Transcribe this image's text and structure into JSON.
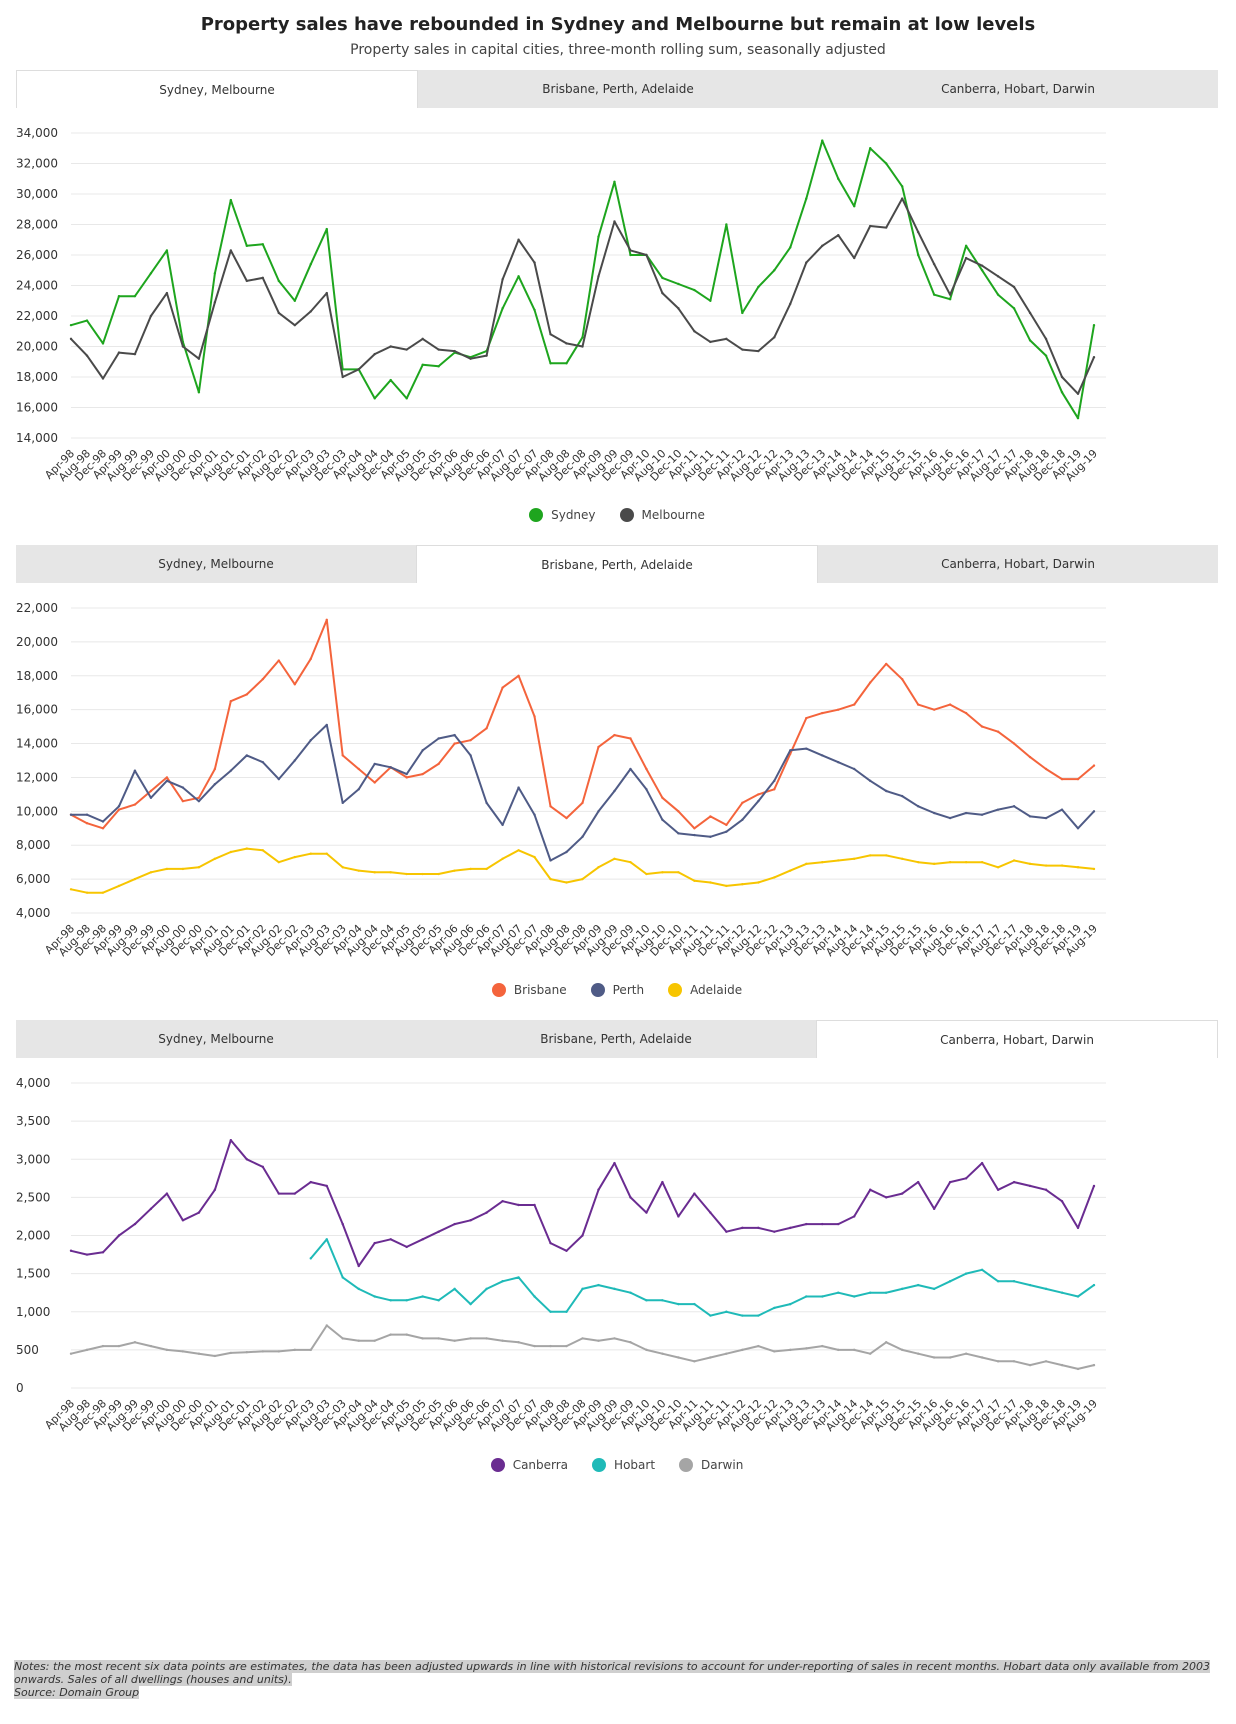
{
  "header": {
    "title": "Property sales have rebounded in Sydney and Melbourne but remain at low levels",
    "subtitle": "Property sales in capital cities, three-month rolling sum, seasonally adjusted"
  },
  "tabs": [
    "Sydney, Melbourne",
    "Brisbane, Perth, Adelaide",
    "Canberra, Hobart, Darwin"
  ],
  "colors": {
    "sydney": "#1ea51e",
    "melbourne": "#4a4a4a",
    "brisbane": "#f4643c",
    "perth": "#4f5b86",
    "adelaide": "#f7c500",
    "canberra": "#6a2c91",
    "hobart": "#1fbab8",
    "darwin": "#a5a5a5"
  },
  "notes": {
    "text": "Notes: the most recent six data points are estimates, the data has been adjusted upwards in line with historical revisions to account for under-reporting of sales in recent months. Hobart data only available from 2003 onwards. Sales of all dwellings (houses and units).",
    "source": "Source: Domain Group"
  },
  "chart_data": [
    {
      "type": "line",
      "active_tab": 0,
      "x_ticks": [
        "Apr-98",
        "Aug-98",
        "Dec-98",
        "Apr-99",
        "Aug-99",
        "Dec-99",
        "Apr-00",
        "Aug-00",
        "Dec-00",
        "Apr-01",
        "Aug-01",
        "Dec-01",
        "Apr-02",
        "Aug-02",
        "Dec-02",
        "Apr-03",
        "Aug-03",
        "Dec-03",
        "Apr-04",
        "Aug-04",
        "Dec-04",
        "Apr-05",
        "Aug-05",
        "Dec-05",
        "Apr-06",
        "Aug-06",
        "Dec-06",
        "Apr-07",
        "Aug-07",
        "Dec-07",
        "Apr-08",
        "Aug-08",
        "Dec-08",
        "Apr-09",
        "Aug-09",
        "Dec-09",
        "Apr-10",
        "Aug-10",
        "Dec-10",
        "Apr-11",
        "Aug-11",
        "Dec-11",
        "Apr-12",
        "Aug-12",
        "Dec-12",
        "Apr-13",
        "Aug-13",
        "Dec-13",
        "Apr-14",
        "Aug-14",
        "Dec-14",
        "Apr-15",
        "Aug-15",
        "Dec-15",
        "Apr-16",
        "Aug-16",
        "Dec-16",
        "Apr-17",
        "Aug-17",
        "Dec-17",
        "Apr-18",
        "Aug-18",
        "Dec-18",
        "Apr-19",
        "Aug-19"
      ],
      "y_ticks": [
        "34,000",
        "32,000",
        "30,000",
        "28,000",
        "26,000",
        "24,000",
        "22,000",
        "20,000",
        "18,000",
        "16,000",
        "14,000"
      ],
      "ylim": [
        14000,
        34000
      ],
      "series": [
        {
          "name": "Sydney",
          "color_key": "sydney",
          "values": [
            21400,
            21700,
            20200,
            23300,
            23300,
            24800,
            26300,
            20300,
            17000,
            24800,
            29600,
            26600,
            26700,
            24300,
            23000,
            25400,
            27700,
            18500,
            18500,
            16600,
            17800,
            16600,
            18800,
            18700,
            19600,
            19300,
            19700,
            22500,
            24600,
            22400,
            18900,
            18900,
            20600,
            27200,
            30800,
            26000,
            26000,
            24500,
            24100,
            23700,
            23000,
            28000,
            22200,
            23900,
            25000,
            26500,
            29700,
            33500,
            31000,
            29200,
            33000,
            32000,
            30500,
            26000,
            23400,
            23100,
            26600,
            25000,
            23400,
            22500,
            20400,
            19400,
            17000,
            15300,
            21400
          ]
        },
        {
          "name": "Melbourne",
          "color_key": "melbourne",
          "values": [
            20500,
            19400,
            17900,
            19600,
            19500,
            22000,
            23500,
            20000,
            19200,
            22900,
            26300,
            24300,
            24500,
            22200,
            21400,
            22300,
            23500,
            18000,
            18500,
            19500,
            20000,
            19800,
            20500,
            19800,
            19700,
            19200,
            19400,
            24400,
            27000,
            25500,
            20800,
            20200,
            20000,
            24600,
            28200,
            26300,
            26000,
            23500,
            22500,
            21000,
            20300,
            20500,
            19800,
            19700,
            20600,
            22800,
            25500,
            26600,
            27300,
            25800,
            27900,
            27800,
            29700,
            27500,
            25400,
            23400,
            25800,
            25300,
            24600,
            23900,
            22200,
            20500,
            18000,
            16900,
            19300
          ]
        }
      ]
    },
    {
      "type": "line",
      "active_tab": 1,
      "x_ticks": [
        "Apr-98",
        "Aug-98",
        "Dec-98",
        "Apr-99",
        "Aug-99",
        "Dec-99",
        "Apr-00",
        "Aug-00",
        "Dec-00",
        "Apr-01",
        "Aug-01",
        "Dec-01",
        "Apr-02",
        "Aug-02",
        "Dec-02",
        "Apr-03",
        "Aug-03",
        "Dec-03",
        "Apr-04",
        "Aug-04",
        "Dec-04",
        "Apr-05",
        "Aug-05",
        "Dec-05",
        "Apr-06",
        "Aug-06",
        "Dec-06",
        "Apr-07",
        "Aug-07",
        "Dec-07",
        "Apr-08",
        "Aug-08",
        "Dec-08",
        "Apr-09",
        "Aug-09",
        "Dec-09",
        "Apr-10",
        "Aug-10",
        "Dec-10",
        "Apr-11",
        "Aug-11",
        "Dec-11",
        "Apr-12",
        "Aug-12",
        "Dec-12",
        "Apr-13",
        "Aug-13",
        "Dec-13",
        "Apr-14",
        "Aug-14",
        "Dec-14",
        "Apr-15",
        "Aug-15",
        "Dec-15",
        "Apr-16",
        "Aug-16",
        "Dec-16",
        "Apr-17",
        "Aug-17",
        "Dec-17",
        "Apr-18",
        "Aug-18",
        "Dec-18",
        "Apr-19",
        "Aug-19"
      ],
      "y_ticks": [
        "22,000",
        "20,000",
        "18,000",
        "16,000",
        "14,000",
        "12,000",
        "10,000",
        "8,000",
        "6,000",
        "4,000"
      ],
      "ylim": [
        4000,
        22000
      ],
      "series": [
        {
          "name": "Brisbane",
          "color_key": "brisbane",
          "values": [
            9800,
            9300,
            9000,
            10100,
            10400,
            11200,
            12000,
            10600,
            10800,
            12500,
            16500,
            16900,
            17800,
            18900,
            17500,
            19000,
            21300,
            13300,
            12500,
            11700,
            12600,
            12000,
            12200,
            12800,
            14000,
            14200,
            14900,
            17300,
            18000,
            15600,
            10300,
            9600,
            10500,
            13800,
            14500,
            14300,
            12500,
            10800,
            10000,
            9000,
            9700,
            9200,
            10500,
            11000,
            11300,
            13400,
            15500,
            15800,
            16000,
            16300,
            17600,
            18700,
            17800,
            16300,
            16000,
            16300,
            15800,
            15000,
            14700,
            14000,
            13200,
            12500,
            11900,
            11900,
            12700
          ]
        },
        {
          "name": "Perth",
          "color_key": "perth",
          "values": [
            9800,
            9800,
            9400,
            10300,
            12400,
            10800,
            11800,
            11400,
            10600,
            11600,
            12400,
            13300,
            12900,
            11900,
            13000,
            14200,
            15100,
            10500,
            11300,
            12800,
            12600,
            12200,
            13600,
            14300,
            14500,
            13300,
            10500,
            9200,
            11400,
            9800,
            7100,
            7600,
            8500,
            10000,
            11200,
            12500,
            11300,
            9500,
            8700,
            8600,
            8500,
            8800,
            9500,
            10600,
            11800,
            13600,
            13700,
            13300,
            12900,
            12500,
            11800,
            11200,
            10900,
            10300,
            9900,
            9600,
            9900,
            9800,
            10100,
            10300,
            9700,
            9600,
            10100,
            9000,
            10000
          ]
        },
        {
          "name": "Adelaide",
          "color_key": "adelaide",
          "values": [
            5400,
            5200,
            5200,
            5600,
            6000,
            6400,
            6600,
            6600,
            6700,
            7200,
            7600,
            7800,
            7700,
            7000,
            7300,
            7500,
            7500,
            6700,
            6500,
            6400,
            6400,
            6300,
            6300,
            6300,
            6500,
            6600,
            6600,
            7200,
            7700,
            7300,
            6000,
            5800,
            6000,
            6700,
            7200,
            7000,
            6300,
            6400,
            6400,
            5900,
            5800,
            5600,
            5700,
            5800,
            6100,
            6500,
            6900,
            7000,
            7100,
            7200,
            7400,
            7400,
            7200,
            7000,
            6900,
            7000,
            7000,
            7000,
            6700,
            7100,
            6900,
            6800,
            6800,
            6700,
            6600
          ]
        }
      ]
    },
    {
      "type": "line",
      "active_tab": 2,
      "x_ticks": [
        "Apr-98",
        "Aug-98",
        "Dec-98",
        "Apr-99",
        "Aug-99",
        "Dec-99",
        "Apr-00",
        "Aug-00",
        "Dec-00",
        "Apr-01",
        "Aug-01",
        "Dec-01",
        "Apr-02",
        "Aug-02",
        "Dec-02",
        "Apr-03",
        "Aug-03",
        "Dec-03",
        "Apr-04",
        "Aug-04",
        "Dec-04",
        "Apr-05",
        "Aug-05",
        "Dec-05",
        "Apr-06",
        "Aug-06",
        "Dec-06",
        "Apr-07",
        "Aug-07",
        "Dec-07",
        "Apr-08",
        "Aug-08",
        "Dec-08",
        "Apr-09",
        "Aug-09",
        "Dec-09",
        "Apr-10",
        "Aug-10",
        "Dec-10",
        "Apr-11",
        "Aug-11",
        "Dec-11",
        "Apr-12",
        "Aug-12",
        "Dec-12",
        "Apr-13",
        "Aug-13",
        "Dec-13",
        "Apr-14",
        "Aug-14",
        "Dec-14",
        "Apr-15",
        "Aug-15",
        "Dec-15",
        "Apr-16",
        "Aug-16",
        "Dec-16",
        "Apr-17",
        "Aug-17",
        "Dec-17",
        "Apr-18",
        "Aug-18",
        "Dec-18",
        "Apr-19",
        "Aug-19"
      ],
      "y_ticks": [
        "4,000",
        "3,500",
        "3,000",
        "2,500",
        "2,000",
        "1,500",
        "1,000",
        "500",
        "0"
      ],
      "ylim": [
        0,
        4000
      ],
      "series": [
        {
          "name": "Canberra",
          "color_key": "canberra",
          "values": [
            1800,
            1750,
            1780,
            2000,
            2150,
            2350,
            2550,
            2200,
            2300,
            2600,
            3250,
            3000,
            2900,
            2550,
            2550,
            2700,
            2650,
            2150,
            1600,
            1900,
            1950,
            1850,
            1950,
            2050,
            2150,
            2200,
            2300,
            2450,
            2400,
            2400,
            1900,
            1800,
            2000,
            2600,
            2950,
            2500,
            2300,
            2700,
            2250,
            2550,
            2300,
            2050,
            2100,
            2100,
            2050,
            2100,
            2150,
            2150,
            2150,
            2250,
            2600,
            2500,
            2550,
            2700,
            2350,
            2700,
            2750,
            2950,
            2600,
            2700,
            2650,
            2600,
            2450,
            2100,
            2650
          ]
        },
        {
          "name": "Hobart",
          "color_key": "hobart",
          "values": [
            null,
            null,
            null,
            null,
            null,
            null,
            null,
            null,
            null,
            null,
            null,
            null,
            null,
            null,
            null,
            1700,
            1950,
            1450,
            1300,
            1200,
            1150,
            1150,
            1200,
            1150,
            1300,
            1100,
            1300,
            1400,
            1450,
            1200,
            1000,
            1000,
            1300,
            1350,
            1300,
            1250,
            1150,
            1150,
            1100,
            1100,
            950,
            1000,
            950,
            950,
            1050,
            1100,
            1200,
            1200,
            1250,
            1200,
            1250,
            1250,
            1300,
            1350,
            1300,
            1400,
            1500,
            1550,
            1400,
            1400,
            1350,
            1300,
            1250,
            1200,
            1350
          ]
        },
        {
          "name": "Darwin",
          "color_key": "darwin",
          "values": [
            450,
            500,
            550,
            550,
            600,
            550,
            500,
            480,
            450,
            420,
            460,
            470,
            480,
            480,
            500,
            500,
            820,
            650,
            620,
            620,
            700,
            700,
            650,
            650,
            620,
            650,
            650,
            620,
            600,
            550,
            550,
            550,
            650,
            620,
            650,
            600,
            500,
            450,
            400,
            350,
            400,
            450,
            500,
            550,
            480,
            500,
            520,
            550,
            500,
            500,
            450,
            600,
            500,
            450,
            400,
            400,
            450,
            400,
            350,
            350,
            300,
            350,
            300,
            250,
            300
          ]
        }
      ]
    }
  ]
}
